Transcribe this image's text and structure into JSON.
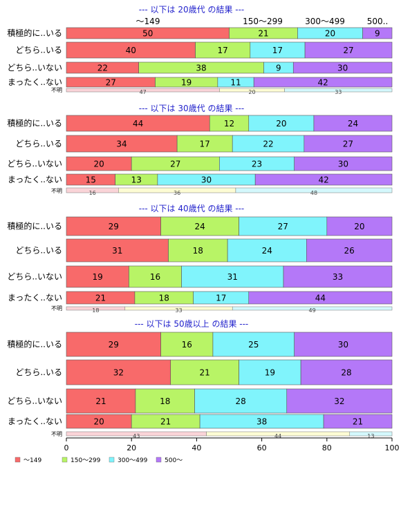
{
  "chart_data": {
    "type": "bar",
    "stacked": true,
    "orientation": "horizontal",
    "series_names": [
      "～149",
      "150～299",
      "300～499",
      "500～"
    ],
    "series_header_labels": [
      "～149",
      "150～299",
      "300～499",
      "500.."
    ],
    "colors": [
      "#f86a6a",
      "#b8f466",
      "#80f4fc",
      "#b478f8"
    ],
    "unknown_colors": [
      "#fad4d8",
      "#fdfcd4",
      "#d4f8fc"
    ],
    "xlim": [
      0,
      100
    ],
    "xticks": [
      0,
      20,
      40,
      60,
      80,
      100
    ],
    "unknown_label": "不明",
    "panels": [
      {
        "title": "--- 以下は 20歳代 の結果 ---",
        "categories": [
          "積極的に..いる",
          "どちら..いる",
          "どちら..いない",
          "まったく..ない"
        ],
        "values": [
          [
            50,
            21,
            20,
            9
          ],
          [
            40,
            17,
            17,
            27
          ],
          [
            22,
            38,
            9,
            30
          ],
          [
            27,
            19,
            11,
            42
          ]
        ],
        "unknown": [
          47,
          20,
          33
        ]
      },
      {
        "title": "--- 以下は 30歳代 の結果 ---",
        "categories": [
          "積極的に..いる",
          "どちら..いる",
          "どちら..いない",
          "まったく..ない"
        ],
        "values": [
          [
            44,
            12,
            20,
            24
          ],
          [
            34,
            17,
            22,
            27
          ],
          [
            20,
            27,
            23,
            30
          ],
          [
            15,
            13,
            30,
            42
          ]
        ],
        "unknown": [
          16,
          36,
          48
        ]
      },
      {
        "title": "--- 以下は 40歳代 の結果 ---",
        "categories": [
          "積極的に..いる",
          "どちら..いる",
          "どちら..いない",
          "まったく..ない"
        ],
        "values": [
          [
            29,
            24,
            27,
            20
          ],
          [
            31,
            18,
            24,
            26
          ],
          [
            19,
            16,
            31,
            33
          ],
          [
            21,
            18,
            17,
            44
          ]
        ],
        "unknown": [
          18,
          33,
          49
        ]
      },
      {
        "title": "--- 以下は 50歳以上 の結果 ---",
        "categories": [
          "積極的に..いる",
          "どちら..いる",
          "どちら..いない",
          "まったく..ない"
        ],
        "values": [
          [
            29,
            16,
            25,
            30
          ],
          [
            32,
            21,
            19,
            28
          ],
          [
            21,
            18,
            28,
            32
          ],
          [
            20,
            21,
            38,
            21
          ]
        ],
        "unknown": [
          43,
          44,
          13
        ]
      }
    ]
  }
}
